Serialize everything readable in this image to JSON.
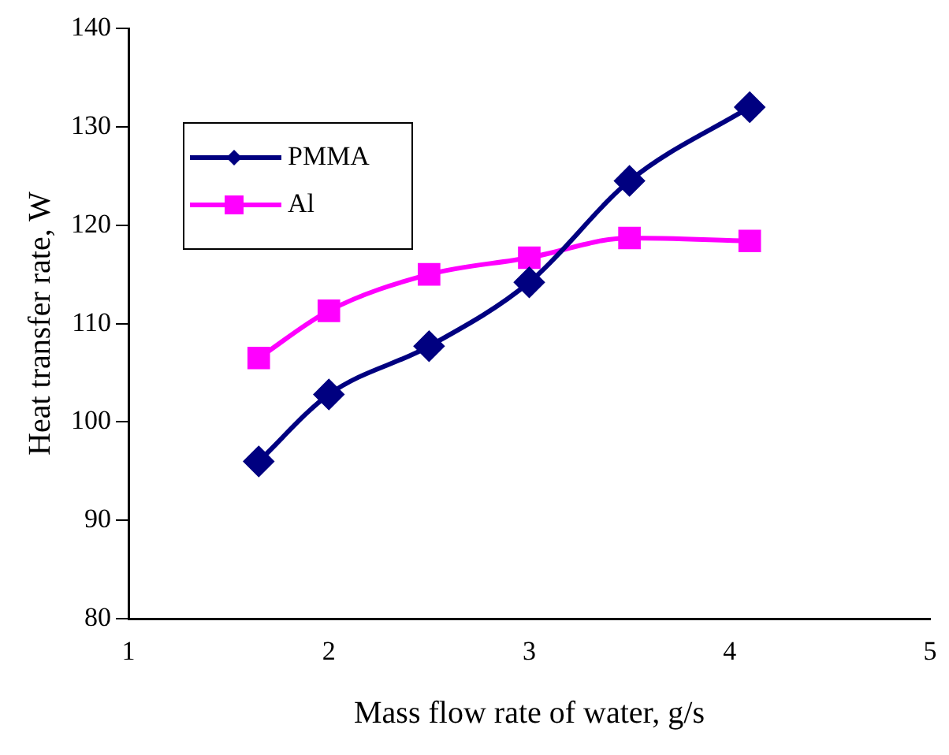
{
  "chart_data": {
    "type": "line",
    "xlabel": "Mass flow rate of water, g/s",
    "ylabel": "Heat transfer rate, W",
    "xlim": [
      1,
      5
    ],
    "xticks": [
      1,
      2,
      3,
      4,
      5
    ],
    "ylim": [
      80,
      140
    ],
    "yticks": [
      80,
      90,
      100,
      110,
      120,
      130,
      140
    ],
    "grid": false,
    "legend": "top left",
    "line_style": "solid",
    "series": [
      {
        "name": "PMMA",
        "color": "#000080",
        "marker": "diamond",
        "x": [
          1.65,
          2,
          2.5,
          3,
          3.5,
          4.1
        ],
        "values": [
          96,
          102.8,
          107.7,
          114.2,
          124.5,
          132
        ]
      },
      {
        "name": "Al",
        "color": "#ff00ff",
        "marker": "square",
        "x": [
          1.65,
          2,
          2.5,
          3,
          3.5,
          4.1
        ],
        "values": [
          106.5,
          111.3,
          115,
          116.7,
          118.7,
          118.4
        ]
      }
    ]
  }
}
